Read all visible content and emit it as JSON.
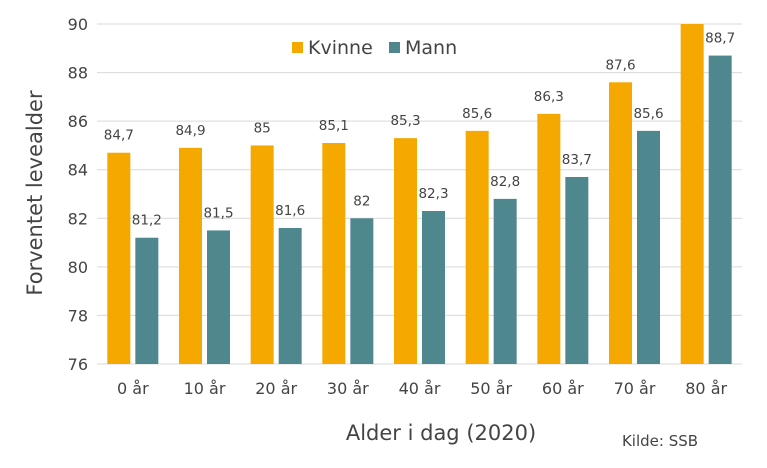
{
  "chart_data": {
    "type": "bar",
    "categories": [
      "0 år",
      "10 år",
      "20 år",
      "30 år",
      "40 år",
      "50 år",
      "60 år",
      "70 år",
      "80 år"
    ],
    "series": [
      {
        "name": "Kvinne",
        "color": "#F5A800",
        "values": [
          84.7,
          84.9,
          85,
          85.1,
          85.3,
          85.6,
          86.3,
          87.6,
          90.0
        ],
        "labels": [
          "84,7",
          "84,9",
          "85",
          "85,1",
          "85,3",
          "85,6",
          "86,3",
          "87,6",
          ""
        ]
      },
      {
        "name": "Mann",
        "color": "#4F878E",
        "values": [
          81.2,
          81.5,
          81.6,
          82,
          82.3,
          82.8,
          83.7,
          85.6,
          88.7
        ],
        "labels": [
          "81,2",
          "81,5",
          "81,6",
          "82",
          "82,3",
          "82,8",
          "83,7",
          "85,6",
          "88,7"
        ]
      }
    ],
    "xlabel": "Alder i dag (2020)",
    "ylabel": "Forventet levealder",
    "ylim": [
      76,
      90
    ],
    "yticks": [
      76,
      78,
      80,
      82,
      84,
      86,
      88,
      90
    ],
    "grid": true,
    "legend": "top-center",
    "source": "Kilde: SSB"
  }
}
